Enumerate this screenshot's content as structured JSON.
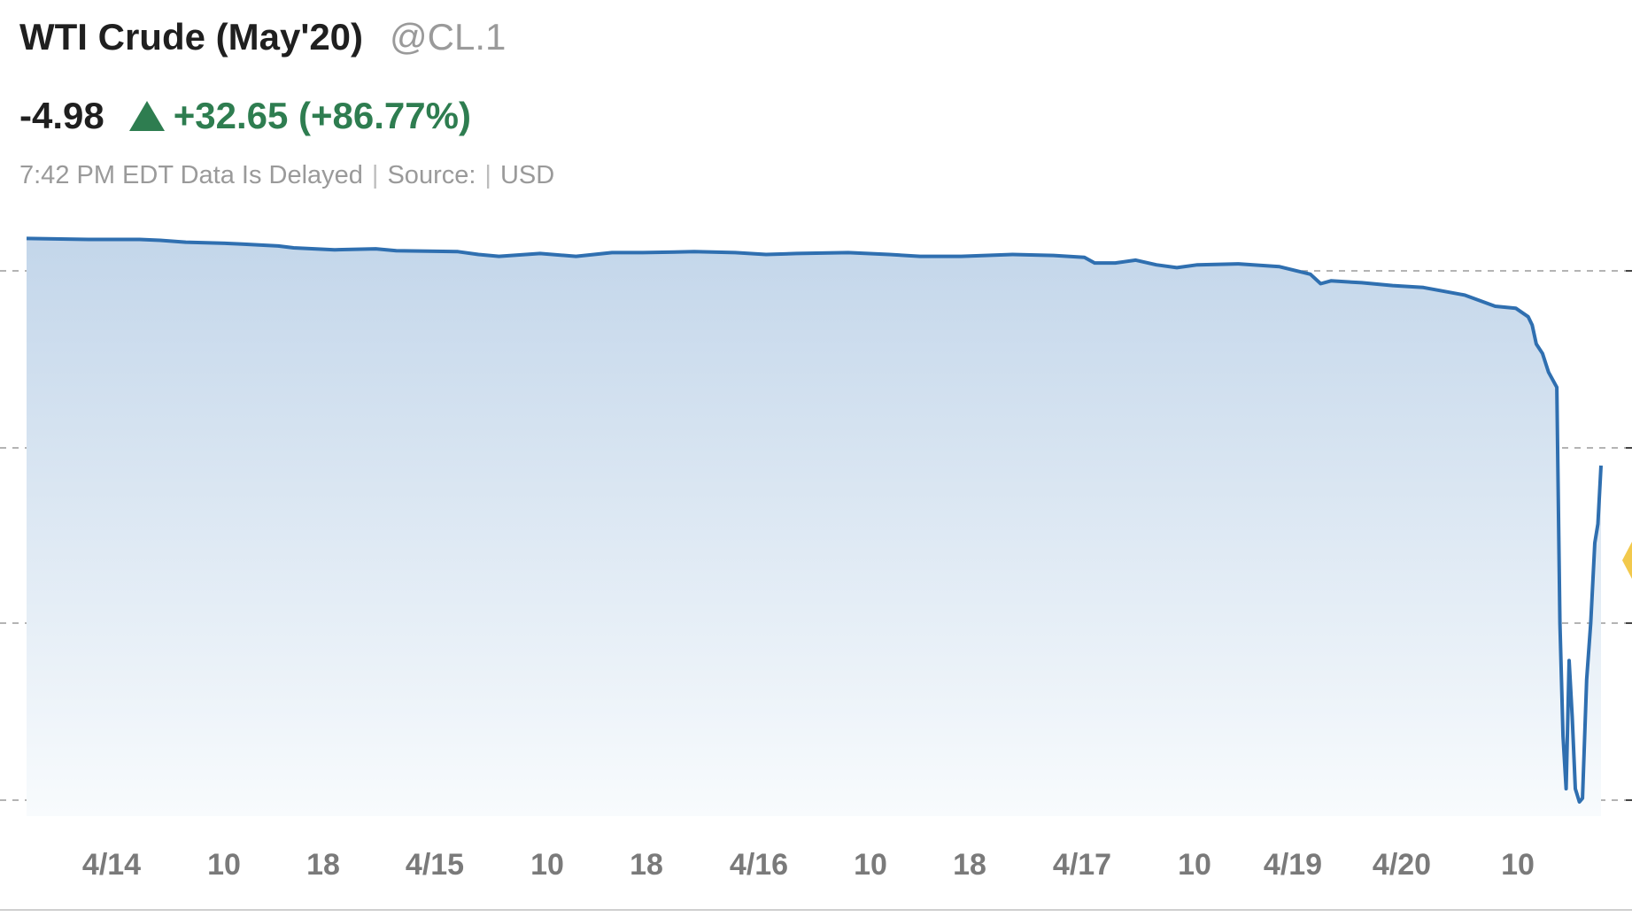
{
  "header": {
    "title": "WTI Crude (May'20)",
    "symbol": "@CL.1",
    "last": "-4.98",
    "change": "+32.65 (+86.77%)",
    "change_color": "#2e7d50",
    "direction_icon": "triangle-up-icon",
    "meta": {
      "time": "7:42 PM EDT Data Is Delayed",
      "source_label": "Source:",
      "currency": "USD"
    }
  },
  "colors": {
    "line": "#2f6fb0",
    "fill_top": "#c3d6ea",
    "fill_bottom": "#f8fbfd",
    "volume": "#d7c4c4",
    "marker": "#f2c94c",
    "axis_text": "#7a7a7a"
  },
  "chart_data": {
    "type": "area",
    "x_tick_labels": [
      "4/14",
      "10",
      "18",
      "4/15",
      "10",
      "18",
      "4/16",
      "10",
      "18",
      "4/17",
      "10",
      "4/19",
      "4/20",
      "10"
    ],
    "series": [
      {
        "values": [
          [
            0,
            20.8
          ],
          [
            60,
            20.7
          ],
          [
            110,
            20.7
          ],
          [
            130,
            20.6
          ],
          [
            155,
            20.4
          ],
          [
            190,
            20.3
          ],
          [
            210,
            20.2
          ],
          [
            245,
            20.0
          ],
          [
            260,
            19.8
          ],
          [
            300,
            19.6
          ],
          [
            340,
            19.7
          ],
          [
            360,
            19.5
          ],
          [
            420,
            19.4
          ],
          [
            440,
            19.1
          ],
          [
            460,
            18.9
          ],
          [
            500,
            19.2
          ],
          [
            535,
            18.9
          ],
          [
            570,
            19.3
          ],
          [
            600,
            19.3
          ],
          [
            650,
            19.4
          ],
          [
            690,
            19.3
          ],
          [
            720,
            19.1
          ],
          [
            750,
            19.2
          ],
          [
            800,
            19.3
          ],
          [
            840,
            19.1
          ],
          [
            870,
            18.9
          ],
          [
            910,
            18.9
          ],
          [
            960,
            19.1
          ],
          [
            1000,
            19.0
          ],
          [
            1030,
            18.8
          ],
          [
            1040,
            18.2
          ],
          [
            1060,
            18.2
          ],
          [
            1080,
            18.5
          ],
          [
            1100,
            18.0
          ],
          [
            1120,
            17.7
          ],
          [
            1140,
            18.0
          ],
          [
            1180,
            18.1
          ],
          [
            1220,
            17.8
          ],
          [
            1250,
            17.0
          ],
          [
            1260,
            16.0
          ],
          [
            1270,
            16.3
          ],
          [
            1300,
            16.1
          ],
          [
            1330,
            15.8
          ],
          [
            1360,
            15.6
          ],
          [
            1400,
            14.8
          ],
          [
            1430,
            13.6
          ],
          [
            1450,
            13.4
          ],
          [
            1462,
            12.5
          ],
          [
            1466,
            11.6
          ],
          [
            1470,
            9.6
          ],
          [
            1476,
            8.6
          ],
          [
            1482,
            6.6
          ],
          [
            1490,
            5.0
          ],
          [
            1493,
            -20.0
          ],
          [
            1496,
            -32.0
          ],
          [
            1499,
            -37.6
          ],
          [
            1502,
            -24.0
          ],
          [
            1505,
            -30.0
          ],
          [
            1508,
            -37.6
          ],
          [
            1512,
            -39.0
          ],
          [
            1515,
            -38.6
          ],
          [
            1519,
            -26.0
          ],
          [
            1523,
            -20.0
          ],
          [
            1527,
            -11.5
          ],
          [
            1530,
            -9.5
          ],
          [
            1533,
            -3.3
          ]
        ]
      }
    ],
    "ylim": [
      -40.5,
      24.5
    ],
    "grid": "horizontal dashed",
    "current_value": -4.98
  }
}
